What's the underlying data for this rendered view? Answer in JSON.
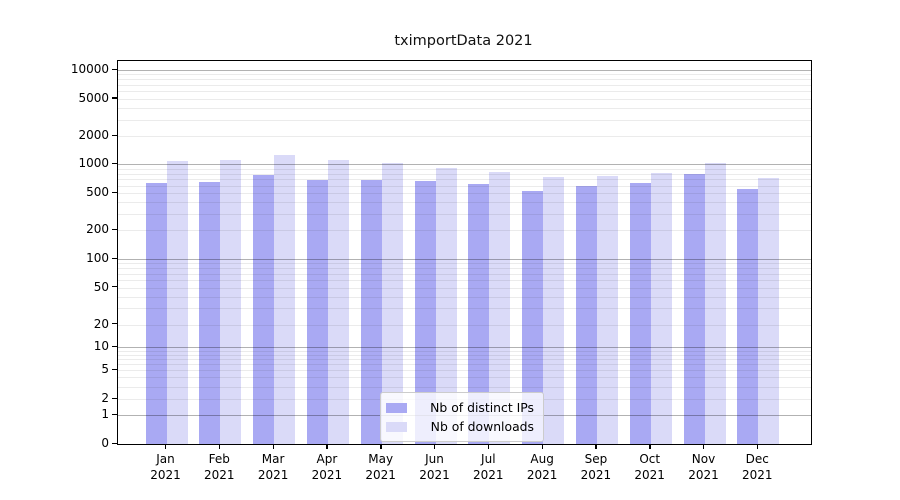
{
  "chart_data": {
    "type": "bar",
    "title": "tximportData 2021",
    "x_months": [
      "Jan",
      "Feb",
      "Mar",
      "Apr",
      "May",
      "Jun",
      "Jul",
      "Aug",
      "Sep",
      "Oct",
      "Nov",
      "Dec"
    ],
    "x_year": "2021",
    "categories": [
      "Jan 2021",
      "Feb 2021",
      "Mar 2021",
      "Apr 2021",
      "May 2021",
      "Jun 2021",
      "Jul 2021",
      "Aug 2021",
      "Sep 2021",
      "Oct 2021",
      "Nov 2021",
      "Dec 2021"
    ],
    "series": [
      {
        "name": "Nb of distinct IPs",
        "color": "#a9a9f3",
        "values": [
          640,
          650,
          770,
          690,
          680,
          670,
          625,
          525,
          600,
          630,
          790,
          545
        ]
      },
      {
        "name": "Nb of downloads",
        "color": "#dadaf8",
        "values": [
          1085,
          1110,
          1270,
          1125,
          1030,
          920,
          835,
          740,
          760,
          810,
          1040,
          720
        ]
      }
    ],
    "y_axis": {
      "scale": "symlog",
      "ticks": [
        0,
        1,
        2,
        5,
        10,
        20,
        50,
        100,
        200,
        500,
        1000,
        2000,
        5000,
        10000
      ],
      "range": [
        0,
        10000
      ]
    },
    "grid": "on",
    "legend_position": "lower center"
  },
  "colors": {
    "bar_dark": "#a9a9f3",
    "bar_light": "#dadaf8",
    "major_grid": "#b3b3b3",
    "minor_grid": "#e9e9e9",
    "axis": "#000000",
    "background": "#ffffff"
  }
}
